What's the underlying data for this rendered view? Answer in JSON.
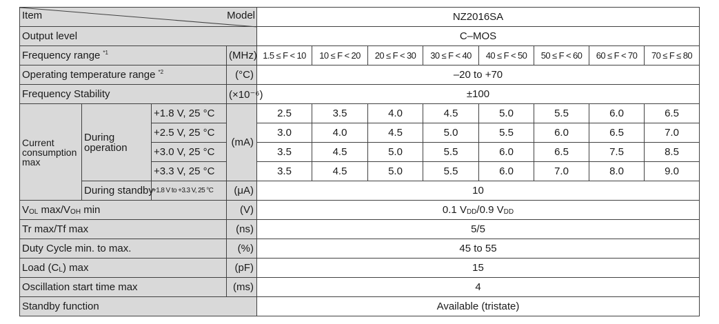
{
  "header": {
    "item": "Item",
    "model": "Model",
    "model_name": "NZ2016SA"
  },
  "rows": [
    {
      "label": "Output level",
      "value": "C–MOS"
    },
    {
      "label": "Frequency range",
      "note": "*1",
      "unit": "(MHz)",
      "values": [
        "1.5 ≤ F < 10",
        "10 ≤ F < 20",
        "20 ≤ F < 30",
        "30 ≤ F < 40",
        "40 ≤ F < 50",
        "50 ≤ F < 60",
        "60 ≤ F < 70",
        "70 ≤ F ≤ 80"
      ]
    },
    {
      "label": "Operating temperature range",
      "note": "*2",
      "unit": "(°C)",
      "value": "–20 to +70"
    },
    {
      "label": "Frequency Stability",
      "unit": "(×10⁻⁶)",
      "value": "±100"
    },
    {
      "label": "Current consumption max",
      "operation": {
        "label": "During operation",
        "unit": "(mA)",
        "conditions": [
          {
            "label": "+1.8 V, 25 °C",
            "values": [
              "2.5",
              "3.5",
              "4.0",
              "4.5",
              "5.0",
              "5.5",
              "6.0",
              "6.5"
            ]
          },
          {
            "label": "+2.5 V, 25 °C",
            "values": [
              "3.0",
              "4.0",
              "4.5",
              "5.0",
              "5.5",
              "6.0",
              "6.5",
              "7.0"
            ]
          },
          {
            "label": "+3.0 V, 25 °C",
            "values": [
              "3.5",
              "4.5",
              "5.0",
              "5.5",
              "6.0",
              "6.5",
              "7.5",
              "8.5"
            ]
          },
          {
            "label": "+3.3 V, 25 °C",
            "values": [
              "3.5",
              "4.5",
              "5.0",
              "5.5",
              "6.0",
              "7.0",
              "8.0",
              "9.0"
            ]
          }
        ]
      },
      "standby": {
        "label": "During standby",
        "condition": "+1.8 V to +3.3 V, 25 °C",
        "unit": "(μA)",
        "value": "10"
      }
    },
    {
      "label": [
        "V",
        "OL",
        " max/V",
        "OH",
        " min"
      ],
      "unit": "(V)",
      "value": [
        "0.1 V",
        "DD",
        "/0.9 V",
        "DD"
      ]
    },
    {
      "label": "Tr max/Tf max",
      "unit": "(ns)",
      "value": "5/5"
    },
    {
      "label": "Duty Cycle min. to max.",
      "unit": "(%)",
      "value": "45 to 55"
    },
    {
      "label": [
        "Load (C",
        "L",
        ") max"
      ],
      "unit": "(pF)",
      "value": "15"
    },
    {
      "label": "Oscillation start time max",
      "unit": "(ms)",
      "value": "4"
    },
    {
      "label": "Standby function",
      "value": "Available (tristate)"
    }
  ]
}
